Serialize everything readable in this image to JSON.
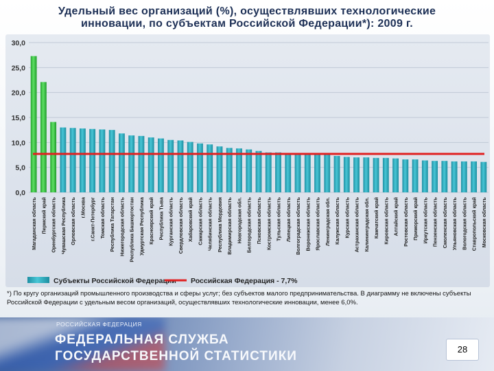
{
  "title": "Удельный вес организаций (%), осуществлявших технологические инновации, по субъектам Российской Федерации*): 2009 г.",
  "chart_data": {
    "type": "bar",
    "title": "Удельный вес организаций (%), осуществлявших технологические инновации, по субъектам Российской Федерации*): 2009 г.",
    "ylim": [
      0,
      30
    ],
    "yticks": [
      "0,0",
      "5,0",
      "10,0",
      "15,0",
      "20,0",
      "25,0",
      "30,0"
    ],
    "categories": [
      "Магаданская область",
      "Пермский край",
      "Оренбургская область",
      "Чувашская Республика",
      "Орловская область",
      "г.Москва",
      "г.Санкт-Петербург",
      "Томская область",
      "Республика Татарстан",
      "Нижегородская область",
      "Республика Башкортостан",
      "Удмуртская Республика",
      "Красноярский край",
      "Республика Тыва",
      "Курганская область",
      "Свердловская область",
      "Хабаровский край",
      "Самарская область",
      "Челябинская область",
      "Республика Мордовия",
      "Владимирская область",
      "Новгородская обл.",
      "Белгородская область",
      "Псковская область",
      "Костромская область",
      "Тульская область",
      "Липецкая область",
      "Волгоградская область",
      "Воронежская область",
      "Ярославская область",
      "Ленинградская обл.",
      "Калужская область",
      "Курская область",
      "Астраханская область",
      "Калининградская обл.",
      "Камчатский край",
      "Кировская область",
      "Алтайский край",
      "Ростовская область",
      "Приморский край",
      "Иркутская область",
      "Пензенская область",
      "Смоленская область",
      "Ульяновская область",
      "Вологодская область",
      "Ставропольский край",
      "Московская область"
    ],
    "values": [
      27.3,
      22.1,
      14.1,
      13.0,
      12.9,
      12.8,
      12.7,
      12.6,
      12.5,
      11.8,
      11.4,
      11.3,
      11.0,
      10.8,
      10.5,
      10.4,
      10.1,
      9.8,
      9.6,
      9.2,
      8.9,
      8.8,
      8.6,
      8.3,
      8.0,
      8.0,
      7.9,
      7.7,
      7.7,
      7.6,
      7.5,
      7.3,
      7.1,
      7.0,
      7.0,
      6.9,
      6.9,
      6.8,
      6.6,
      6.6,
      6.4,
      6.3,
      6.3,
      6.2,
      6.2,
      6.2,
      6.1
    ],
    "highlight_colors": [
      "#42c84a",
      "#42c84a",
      "#42c84a"
    ],
    "bar_color": "#2fb0c2",
    "reference_line": {
      "value": 7.7,
      "color": "#e02020"
    },
    "legend": {
      "series_label": "Субъекты Российской Федерации",
      "line_label": "Российская Федерация - 7,7%"
    }
  },
  "footnote": "*) По кругу организаций промышленного производства и сферы услуг; без субъектов малого предпринимательства. В диаграмму не включены субъекты Российской Федерации с удельным весом организаций, осуществлявших технологические инновации, менее 6,0%.",
  "banner": {
    "small": "РОССИЙСКАЯ ФЕДЕРАЦИЯ",
    "line1": "ФЕДЕРАЛЬНАЯ СЛУЖБА",
    "line2": "ГОСУДАРСТВЕННОЙ СТАТИСТИКИ"
  },
  "page_number": "28"
}
